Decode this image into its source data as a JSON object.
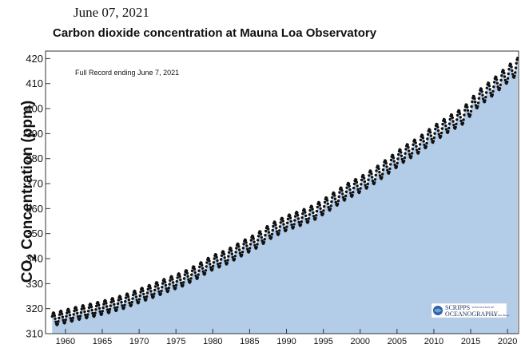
{
  "header": {
    "date": "June 07, 2021",
    "title": "Carbon dioxide concentration at Mauna Loa Observatory"
  },
  "chart_data": {
    "type": "scatter",
    "title": "Carbon dioxide concentration at Mauna Loa Observatory",
    "subtitle": "June 07, 2021",
    "xlabel": "",
    "ylabel": {
      "prefix": "CO",
      "sub": "2",
      "suffix": " Concentration (ppm)"
    },
    "annotation": "Full Record ending June 7, 2021",
    "xlim": [
      1957.3,
      2021.5
    ],
    "ylim": [
      310,
      423
    ],
    "x_ticks": [
      1960,
      1965,
      1970,
      1975,
      1980,
      1985,
      1990,
      1995,
      2000,
      2005,
      2010,
      2015,
      2020
    ],
    "x_tick_labels": [
      "1960",
      "1965",
      "1970",
      "1975",
      "1980",
      "1985",
      "1990",
      "1995",
      "2000",
      "2005",
      "2010",
      "2015",
      "2020"
    ],
    "y_ticks": [
      310,
      320,
      330,
      340,
      350,
      360,
      370,
      380,
      390,
      400,
      410,
      420
    ],
    "y_tick_labels": [
      "310",
      "320",
      "330",
      "340",
      "350",
      "360",
      "370",
      "380",
      "390",
      "400",
      "410",
      "420"
    ],
    "grid": false,
    "fill_under": true,
    "colors": {
      "fill": "#b3cde8",
      "points": "#111111",
      "axes": "#333333"
    },
    "series": [
      {
        "x": [
          1958,
          1960,
          1962,
          1964,
          1966,
          1968,
          1970,
          1972,
          1974,
          1976,
          1978,
          1980,
          1982,
          1984,
          1986,
          1988,
          1990,
          1992,
          1994,
          1996,
          1998,
          2000,
          2002,
          2004,
          2006,
          2008,
          2010,
          2012,
          2014,
          2016,
          2018,
          2020,
          2021.4
        ],
        "y": [
          315.5,
          316.9,
          318.4,
          319.6,
          321.1,
          322.8,
          325.1,
          327.3,
          329.7,
          331.9,
          335.0,
          338.4,
          340.8,
          344.1,
          347.2,
          351.2,
          354.2,
          356.3,
          358.8,
          362.6,
          366.6,
          369.6,
          373.2,
          377.5,
          381.9,
          385.5,
          389.9,
          393.8,
          397.1,
          403.9,
          408.5,
          413.7,
          417.0
        ],
        "seasonal_amplitude_ppm": [
          2.6,
          3.3
        ],
        "sampling": "monthly"
      }
    ],
    "legend": "none",
    "logo": "Scripps Institution of Oceanography",
    "logo_text": {
      "big": "SCRIPPS",
      "small": "INSTITUTION OF",
      "big2": "OCEANOGRAPHY",
      "small2": "UC San Diego"
    }
  }
}
